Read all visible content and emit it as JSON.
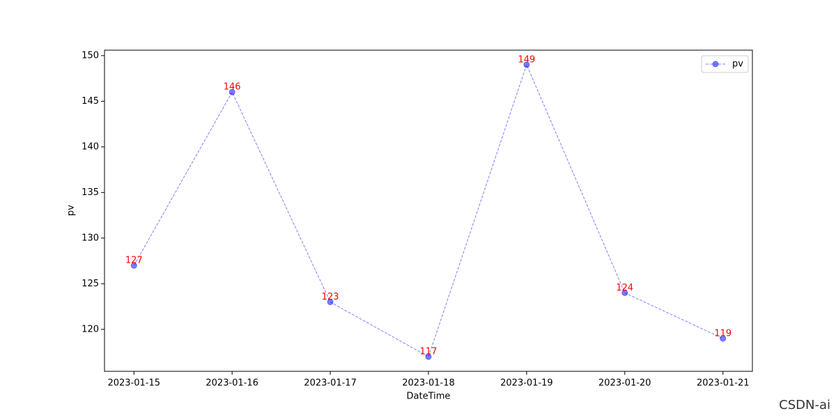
{
  "chart_data": {
    "type": "line",
    "x_label": "DateTime",
    "y_label": "pv",
    "categories": [
      "2023-01-15",
      "2023-01-16",
      "2023-01-17",
      "2023-01-18",
      "2023-01-19",
      "2023-01-20",
      "2023-01-21"
    ],
    "series": [
      {
        "name": "pv",
        "color": "#0000ff",
        "values": [
          127,
          146,
          123,
          117,
          149,
          124,
          119
        ]
      }
    ],
    "label_color": "#ff0000",
    "ylim": [
      115.4,
      150.6
    ],
    "yticks": [
      120,
      125,
      130,
      135,
      140,
      145,
      150
    ],
    "grid": false,
    "legend": "upper right",
    "watermark": "CSDN-ai"
  }
}
